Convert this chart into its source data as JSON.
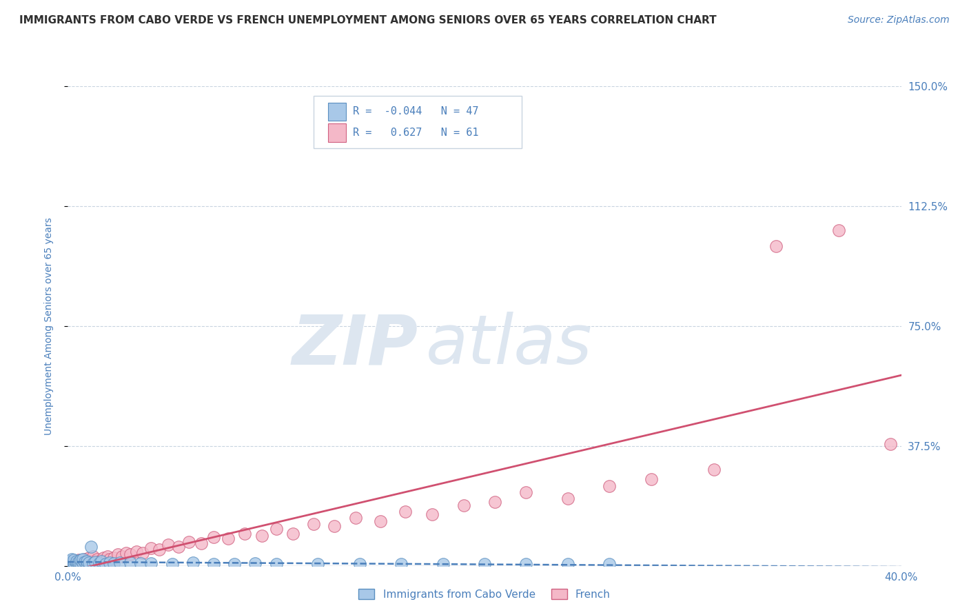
{
  "title": "IMMIGRANTS FROM CABO VERDE VS FRENCH UNEMPLOYMENT AMONG SENIORS OVER 65 YEARS CORRELATION CHART",
  "source": "Source: ZipAtlas.com",
  "ylabel": "Unemployment Among Seniors over 65 years",
  "x_min": 0.0,
  "x_max": 0.4,
  "y_min": 0.0,
  "y_max": 1.5,
  "y_ticks": [
    0.0,
    0.375,
    0.75,
    1.125,
    1.5
  ],
  "y_tick_labels": [
    "",
    "37.5%",
    "75.0%",
    "112.5%",
    "150.0%"
  ],
  "x_ticks": [
    0.0,
    0.4
  ],
  "x_tick_labels": [
    "0.0%",
    "40.0%"
  ],
  "series1_label": "Immigrants from Cabo Verde",
  "series1_R": -0.044,
  "series1_N": 47,
  "series1_color": "#a8c8e8",
  "series1_edge": "#5a8fc0",
  "series2_label": "French",
  "series2_R": 0.627,
  "series2_N": 61,
  "series2_color": "#f4b8c8",
  "series2_edge": "#d06080",
  "trend1_color": "#4a7fbb",
  "trend2_color": "#d05070",
  "watermark_zip": "ZIP",
  "watermark_atlas": "atlas",
  "watermark_color": "#dde6f0",
  "grid_color": "#c8d4e0",
  "title_color": "#303030",
  "axis_label_color": "#4a7fbb",
  "legend_R_color": "#4a7fbb",
  "legend_val_color": "#4a7fbb",
  "background_color": "#ffffff",
  "series1_x": [
    0.001,
    0.001,
    0.001,
    0.002,
    0.002,
    0.002,
    0.003,
    0.003,
    0.003,
    0.004,
    0.004,
    0.005,
    0.005,
    0.006,
    0.006,
    0.007,
    0.007,
    0.008,
    0.009,
    0.009,
    0.01,
    0.011,
    0.012,
    0.013,
    0.015,
    0.016,
    0.018,
    0.02,
    0.022,
    0.025,
    0.03,
    0.035,
    0.04,
    0.05,
    0.06,
    0.07,
    0.08,
    0.09,
    0.1,
    0.12,
    0.14,
    0.16,
    0.18,
    0.2,
    0.22,
    0.24,
    0.26
  ],
  "series1_y": [
    0.005,
    0.01,
    0.015,
    0.005,
    0.012,
    0.02,
    0.005,
    0.01,
    0.018,
    0.008,
    0.015,
    0.005,
    0.012,
    0.008,
    0.018,
    0.01,
    0.02,
    0.012,
    0.006,
    0.015,
    0.01,
    0.06,
    0.008,
    0.012,
    0.008,
    0.015,
    0.006,
    0.01,
    0.008,
    0.01,
    0.01,
    0.008,
    0.008,
    0.006,
    0.01,
    0.006,
    0.006,
    0.008,
    0.006,
    0.006,
    0.005,
    0.006,
    0.005,
    0.005,
    0.005,
    0.005,
    0.005
  ],
  "series2_x": [
    0.001,
    0.002,
    0.002,
    0.003,
    0.003,
    0.004,
    0.005,
    0.005,
    0.006,
    0.007,
    0.008,
    0.008,
    0.009,
    0.01,
    0.01,
    0.011,
    0.012,
    0.012,
    0.013,
    0.014,
    0.015,
    0.016,
    0.017,
    0.018,
    0.019,
    0.02,
    0.022,
    0.024,
    0.026,
    0.028,
    0.03,
    0.033,
    0.036,
    0.04,
    0.044,
    0.048,
    0.053,
    0.058,
    0.064,
    0.07,
    0.077,
    0.085,
    0.093,
    0.1,
    0.108,
    0.118,
    0.128,
    0.138,
    0.15,
    0.162,
    0.175,
    0.19,
    0.205,
    0.22,
    0.24,
    0.26,
    0.28,
    0.31,
    0.34,
    0.37,
    0.395
  ],
  "series2_y": [
    0.005,
    0.008,
    0.012,
    0.006,
    0.015,
    0.01,
    0.005,
    0.018,
    0.008,
    0.012,
    0.006,
    0.02,
    0.01,
    0.005,
    0.025,
    0.015,
    0.008,
    0.03,
    0.012,
    0.02,
    0.01,
    0.018,
    0.025,
    0.015,
    0.03,
    0.02,
    0.025,
    0.035,
    0.03,
    0.04,
    0.035,
    0.045,
    0.04,
    0.055,
    0.05,
    0.065,
    0.06,
    0.075,
    0.07,
    0.09,
    0.085,
    0.1,
    0.095,
    0.115,
    0.1,
    0.13,
    0.125,
    0.15,
    0.14,
    0.17,
    0.16,
    0.19,
    0.2,
    0.23,
    0.21,
    0.25,
    0.27,
    0.3,
    1.0,
    1.05,
    0.38
  ]
}
